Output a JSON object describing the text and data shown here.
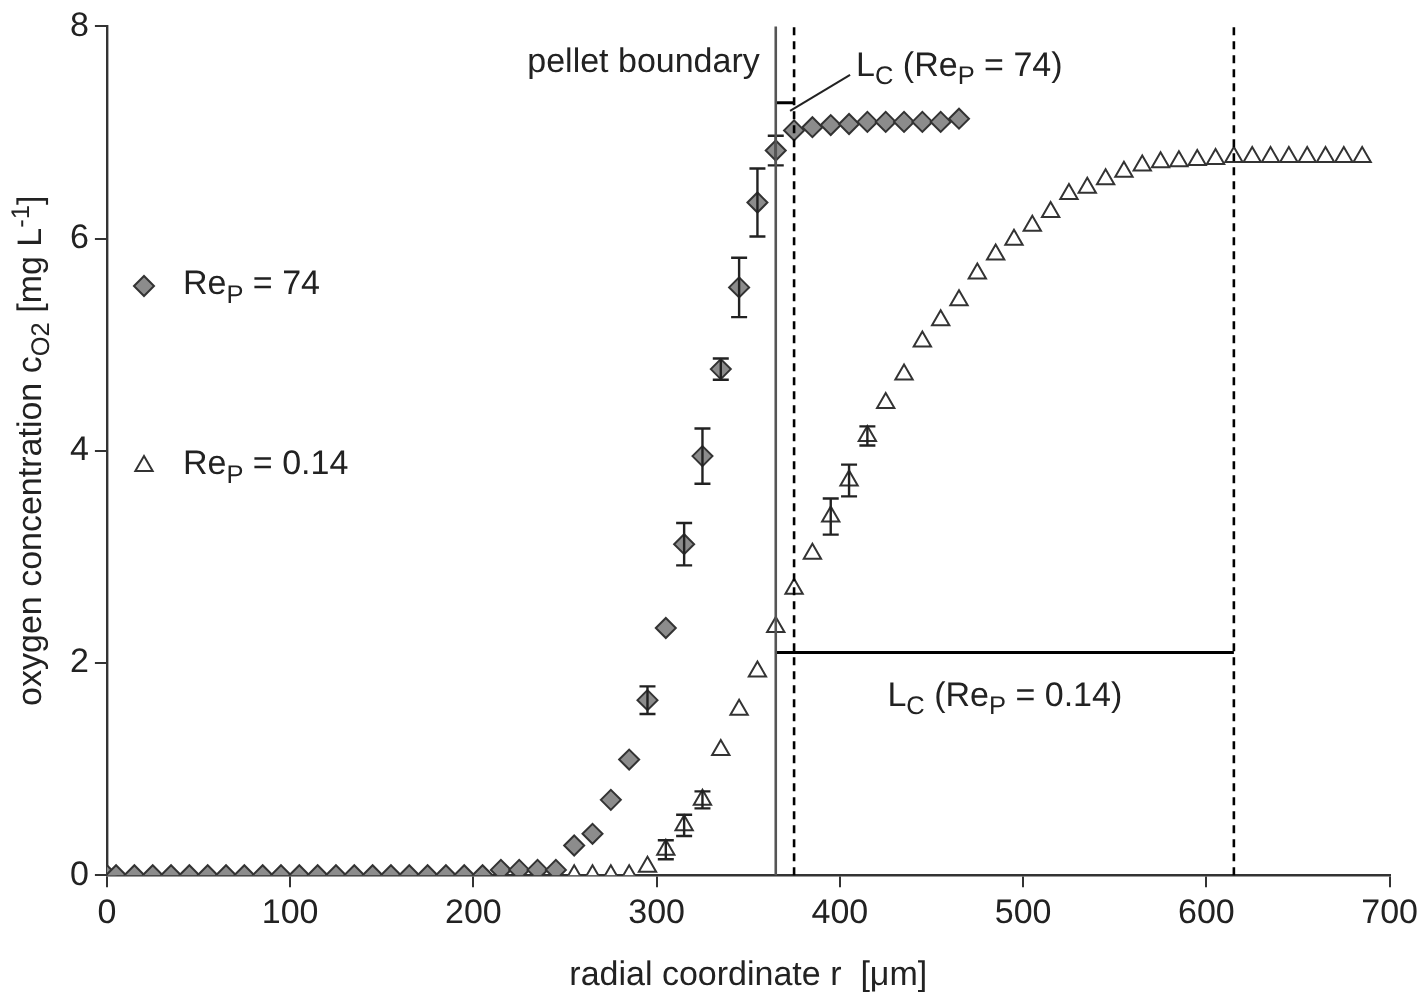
{
  "chart_data": {
    "type": "scatter",
    "xlabel": "radial coordinate r  [μm]",
    "ylabel": "oxygen concentration c$_{O2}$ [mg L$^{-1}$]",
    "xlim": [
      0,
      700
    ],
    "xticks": [
      0,
      100,
      200,
      300,
      400,
      500,
      600,
      700
    ],
    "ylim": [
      0,
      8
    ],
    "yticks": [
      0,
      2,
      4,
      6,
      8
    ],
    "grid": false,
    "legend": "left",
    "series": [
      {
        "name": "Re$_{P}$ = 74",
        "color": "#8c8c8c",
        "marker": "diamond",
        "x": [
          0,
          5,
          15,
          25,
          35,
          45,
          55,
          65,
          75,
          85,
          95,
          105,
          115,
          125,
          135,
          145,
          155,
          165,
          175,
          185,
          195,
          205,
          215,
          225,
          235,
          245,
          255,
          265,
          275,
          285,
          295,
          305,
          315,
          325,
          335,
          345,
          355,
          365,
          375,
          385,
          395,
          405,
          415,
          425,
          435,
          445,
          455,
          465
        ],
        "values": [
          0,
          0,
          0,
          0,
          0,
          0,
          0,
          0,
          0,
          0,
          0,
          0,
          0,
          0,
          0,
          0,
          0,
          0,
          0,
          0,
          0,
          0,
          0.05,
          0.05,
          0.05,
          0.05,
          0.28,
          0.39,
          0.71,
          1.09,
          1.65,
          2.33,
          3.12,
          3.95,
          4.77,
          5.54,
          6.34,
          6.83,
          7.02,
          7.05,
          7.07,
          7.08,
          7.1,
          7.1,
          7.1,
          7.1,
          7.1,
          7.13
        ],
        "errors": [
          null,
          null,
          null,
          null,
          null,
          null,
          null,
          null,
          null,
          null,
          null,
          null,
          null,
          null,
          null,
          null,
          null,
          null,
          null,
          null,
          null,
          null,
          null,
          null,
          null,
          null,
          null,
          null,
          null,
          null,
          0.13,
          null,
          0.2,
          0.26,
          0.1,
          0.28,
          0.32,
          0.14,
          null,
          null,
          null,
          null,
          null,
          null,
          null,
          null,
          null,
          null
        ]
      },
      {
        "name": "Re$_{P}$ = 0.14",
        "color": "#ffffff",
        "marker": "triangle",
        "x": [
          255,
          265,
          275,
          285,
          295,
          305,
          315,
          325,
          335,
          345,
          355,
          365,
          375,
          385,
          395,
          405,
          415,
          425,
          435,
          445,
          455,
          465,
          475,
          485,
          495,
          505,
          515,
          525,
          535,
          545,
          555,
          565,
          575,
          585,
          595,
          605,
          615,
          625,
          635,
          645,
          655,
          665,
          675,
          685
        ],
        "values": [
          0,
          0,
          0,
          0,
          0.08,
          0.24,
          0.47,
          0.71,
          1.18,
          1.56,
          1.92,
          2.34,
          2.7,
          3.03,
          3.38,
          3.72,
          4.14,
          4.45,
          4.72,
          5.03,
          5.23,
          5.42,
          5.67,
          5.85,
          5.99,
          6.12,
          6.25,
          6.42,
          6.48,
          6.56,
          6.63,
          6.69,
          6.72,
          6.73,
          6.74,
          6.75,
          6.77,
          6.77,
          6.77,
          6.77,
          6.77,
          6.77,
          6.77,
          6.77
        ],
        "errors": [
          null,
          null,
          null,
          null,
          null,
          0.09,
          0.1,
          0.08,
          null,
          null,
          null,
          null,
          null,
          null,
          0.17,
          0.15,
          0.09,
          null,
          null,
          null,
          null,
          null,
          null,
          null,
          null,
          null,
          null,
          null,
          null,
          null,
          null,
          null,
          null,
          null,
          null,
          null,
          null,
          null,
          null,
          null,
          null,
          null,
          null,
          null
        ]
      },
      {
        "type": "line",
        "color": "#000000",
        "marker": "none",
        "x": [
          365,
          615
        ],
        "values": [
          2.1,
          2.1
        ]
      },
      {
        "type": "line",
        "color": "#000000",
        "marker": "none",
        "x": [
          365,
          375
        ],
        "values": [
          7.28,
          7.28
        ]
      }
    ],
    "ref_lines": [
      {
        "axis": "x",
        "value": 365,
        "label": "pellet boundary",
        "color": "#555555",
        "line_style": "solid"
      },
      {
        "axis": "x",
        "value": 375,
        "color": "#000000",
        "line_style": "dashed"
      },
      {
        "axis": "x",
        "value": 615,
        "color": "#000000",
        "line_style": "dashed"
      }
    ],
    "annotations": [
      {
        "text": "L$_{C}$ (Re$_{P}$ = 74)",
        "x": 375,
        "y": 7.28
      },
      {
        "text": "L$_{C}$ (Re$_{P}$ = 0.14)",
        "x": 490,
        "y": 2.1
      }
    ]
  }
}
